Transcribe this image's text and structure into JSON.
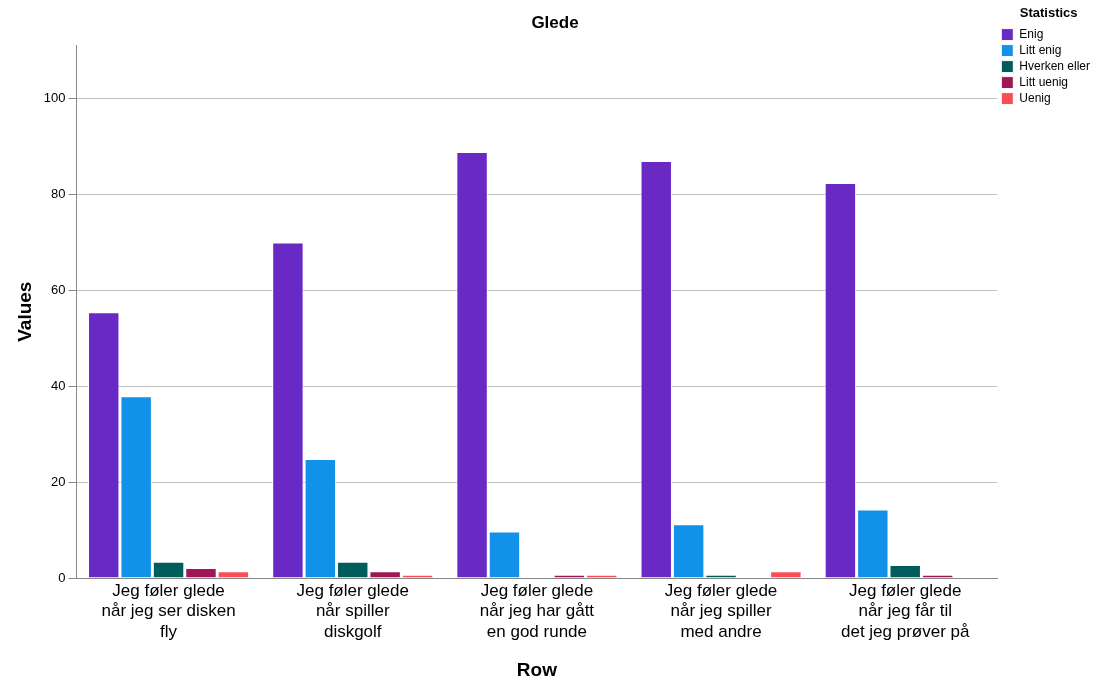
{
  "chart_data": {
    "type": "bar",
    "title": "Glede",
    "xlabel": "Row",
    "ylabel": "Values",
    "legend_title": "Statistics",
    "legend": "top right",
    "grid": "y",
    "categories": [
      "Jeg føler glede når jeg ser disken fly",
      "Jeg føler glede når spiller diskgolf",
      "Jeg føler glede når jeg har gått en god runde",
      "Jeg føler glede når jeg spiller med andre",
      "Jeg føler glede når jeg får til det jeg prøver på"
    ],
    "ylim": [
      0,
      111
    ],
    "yticks": [
      0,
      20,
      40,
      60,
      80,
      100
    ],
    "series": [
      {
        "name": "Enig",
        "color": "#6929c4",
        "values": [
          55.4,
          69.9,
          88.8,
          86.9,
          82.3
        ]
      },
      {
        "name": "Litt enig",
        "color": "#1192e8",
        "values": [
          37.9,
          24.8,
          9.7,
          11.2,
          14.3
        ]
      },
      {
        "name": "Hverken eller",
        "color": "#005d5d",
        "values": [
          3.4,
          3.4,
          0,
          0.7,
          2.7
        ]
      },
      {
        "name": "Litt uenig",
        "color": "#9f1853",
        "values": [
          2.1,
          1.4,
          0.7,
          0,
          0.7
        ]
      },
      {
        "name": "Uenig",
        "color": "#fa4d56",
        "values": [
          1.4,
          0.7,
          0.7,
          1.4,
          0
        ]
      }
    ]
  }
}
